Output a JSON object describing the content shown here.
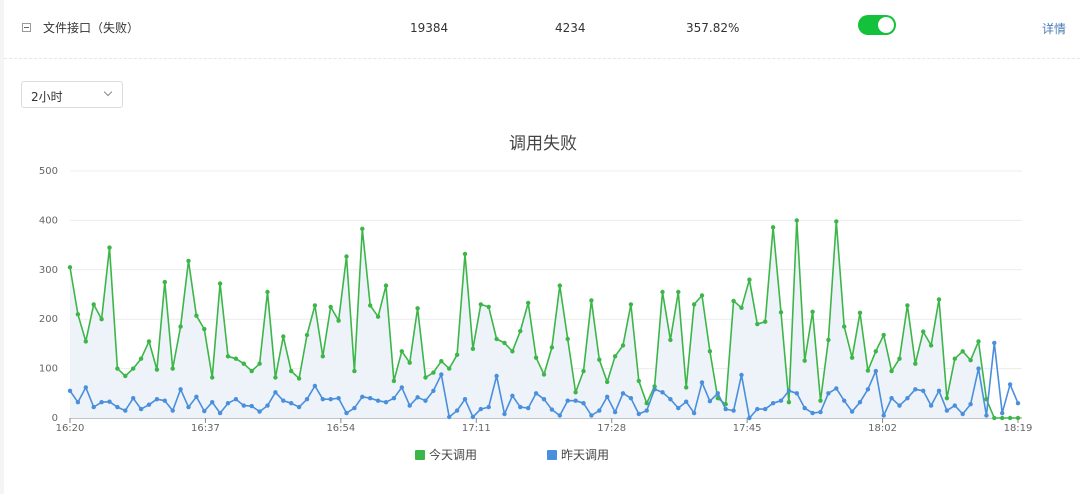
{
  "row": {
    "name": "文件接口（失败）",
    "value1": "19384",
    "value2": "4234",
    "percent": "357.82%",
    "toggle_on": true,
    "toggle_color": "#13c13a",
    "detail_label": "详情"
  },
  "time_select": {
    "value": "2小时"
  },
  "colors": {
    "today": "#3cb648",
    "yesterday": "#4a8fdc",
    "area": "#eef3f9",
    "grid": "#ececec",
    "axis": "#8a8a8a"
  },
  "chart_data": {
    "type": "line",
    "title": "调用失败",
    "ylim": [
      0,
      500
    ],
    "yticks": [
      0,
      100,
      200,
      300,
      400,
      500
    ],
    "xticks": [
      "16:20",
      "16:37",
      "16:54",
      "17:11",
      "17:28",
      "17:45",
      "18:02",
      "18:19"
    ],
    "x_start": "16:20",
    "x_end": "18:19",
    "legend_position": "bottom",
    "series": [
      {
        "name": "今天调用",
        "color": "#3cb648",
        "values": [
          305,
          210,
          155,
          230,
          200,
          345,
          100,
          85,
          100,
          120,
          155,
          98,
          275,
          100,
          185,
          318,
          207,
          180,
          82,
          272,
          125,
          120,
          110,
          95,
          110,
          255,
          82,
          165,
          95,
          80,
          168,
          228,
          125,
          225,
          197,
          327,
          95,
          383,
          228,
          205,
          268,
          75,
          135,
          112,
          222,
          82,
          92,
          115,
          100,
          128,
          332,
          140,
          230,
          225,
          160,
          152,
          135,
          176,
          233,
          122,
          88,
          143,
          268,
          160,
          52,
          95,
          238,
          118,
          73,
          125,
          147,
          230,
          75,
          30,
          64,
          255,
          158,
          255,
          62,
          230,
          248,
          135,
          40,
          28,
          237,
          223,
          280,
          190,
          195,
          386,
          214,
          32,
          400,
          116,
          215,
          35,
          158,
          398,
          185,
          122,
          213,
          96,
          135,
          168,
          95,
          120,
          228,
          110,
          175,
          147,
          240,
          40,
          120,
          135,
          117,
          155,
          38,
          0,
          0,
          0,
          0
        ]
      },
      {
        "name": "昨天调用",
        "color": "#4a8fdc",
        "values": [
          55,
          32,
          62,
          22,
          32,
          33,
          22,
          15,
          40,
          18,
          27,
          38,
          35,
          15,
          58,
          22,
          43,
          14,
          32,
          10,
          30,
          38,
          25,
          24,
          13,
          25,
          52,
          35,
          30,
          22,
          38,
          65,
          38,
          38,
          40,
          10,
          20,
          43,
          40,
          35,
          32,
          40,
          62,
          25,
          42,
          35,
          55,
          88,
          2,
          15,
          38,
          2,
          18,
          22,
          85,
          8,
          45,
          22,
          20,
          50,
          38,
          17,
          5,
          35,
          35,
          30,
          5,
          15,
          43,
          12,
          50,
          40,
          8,
          15,
          58,
          52,
          38,
          20,
          33,
          10,
          72,
          34,
          50,
          18,
          15,
          87,
          0,
          18,
          18,
          30,
          35,
          55,
          50,
          20,
          10,
          12,
          50,
          60,
          35,
          13,
          32,
          58,
          95,
          5,
          40,
          25,
          40,
          58,
          55,
          25,
          55,
          15,
          25,
          8,
          28,
          100,
          5,
          152,
          10,
          68,
          30
        ]
      }
    ]
  }
}
